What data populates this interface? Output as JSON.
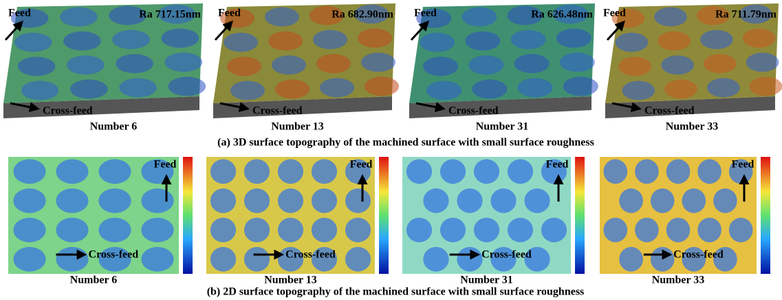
{
  "panels_3d": [
    {
      "ra": "Ra 717.15nm",
      "feed": "Feed",
      "cross_feed": "Cross-feed",
      "label": "Number 6"
    },
    {
      "ra": "Ra 682.90nm",
      "feed": "Feed",
      "cross_feed": "Cross-feed",
      "label": "Number 13"
    },
    {
      "ra": "Ra 626.48nm",
      "feed": "Feed",
      "cross_feed": "Cross-feed",
      "label": "Number 31"
    },
    {
      "ra": "Ra 711.79nm",
      "feed": "Feed",
      "cross_feed": "Cross-feed",
      "label": "Number 33"
    }
  ],
  "caption_a": "(a) 3D surface topography of the machined surface with small surface roughness",
  "panels_2d": [
    {
      "feed": "Feed",
      "cross_feed": "Cross-feed",
      "label": "Number 6"
    },
    {
      "feed": "Feed",
      "cross_feed": "Cross-feed",
      "label": "Number 13"
    },
    {
      "feed": "Feed",
      "cross_feed": "Cross-feed",
      "label": "Number 31"
    },
    {
      "feed": "Feed",
      "cross_feed": "Cross-feed",
      "label": "Number 33"
    }
  ],
  "caption_b": "(b) 2D surface topography of the machined surface with small surface roughness"
}
